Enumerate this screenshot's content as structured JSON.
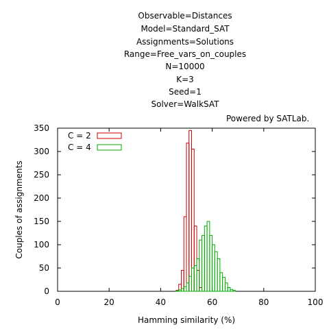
{
  "title_lines": [
    "Observable=Distances",
    "Model=Standard_SAT",
    "Assignments=Solutions",
    "Range=Free_vars_on_couples",
    "N=10000",
    "K=3",
    "Seed=1",
    "Solver=WalkSAT"
  ],
  "powered_by": "Powered by SATLab.",
  "chart_data": {
    "type": "bar",
    "xlabel": "Hamming similarity (%)",
    "ylabel": "Couples of assignments",
    "xlim": [
      0,
      100
    ],
    "ylim": [
      0,
      350
    ],
    "xticks": [
      0,
      20,
      40,
      60,
      80,
      100
    ],
    "yticks": [
      0,
      50,
      100,
      150,
      200,
      250,
      300,
      350
    ],
    "bin_width": 1,
    "grid": false,
    "legend_position": "top-left",
    "series": [
      {
        "name": "C = 2",
        "color": "#cc0000",
        "x": [
          46,
          47,
          48,
          49,
          50,
          51,
          52,
          53,
          54,
          55
        ],
        "y": [
          2,
          15,
          45,
          160,
          318,
          345,
          305,
          140,
          45,
          8
        ]
      },
      {
        "name": "C = 4",
        "color": "#00aa00",
        "x": [
          46,
          47,
          48,
          49,
          50,
          51,
          52,
          53,
          54,
          55,
          56,
          57,
          58,
          59,
          60,
          61,
          62,
          63,
          64,
          65,
          66,
          67,
          68
        ],
        "y": [
          1,
          3,
          6,
          10,
          18,
          32,
          50,
          55,
          70,
          110,
          120,
          140,
          150,
          120,
          100,
          85,
          70,
          40,
          30,
          18,
          8,
          4,
          2
        ]
      }
    ]
  }
}
